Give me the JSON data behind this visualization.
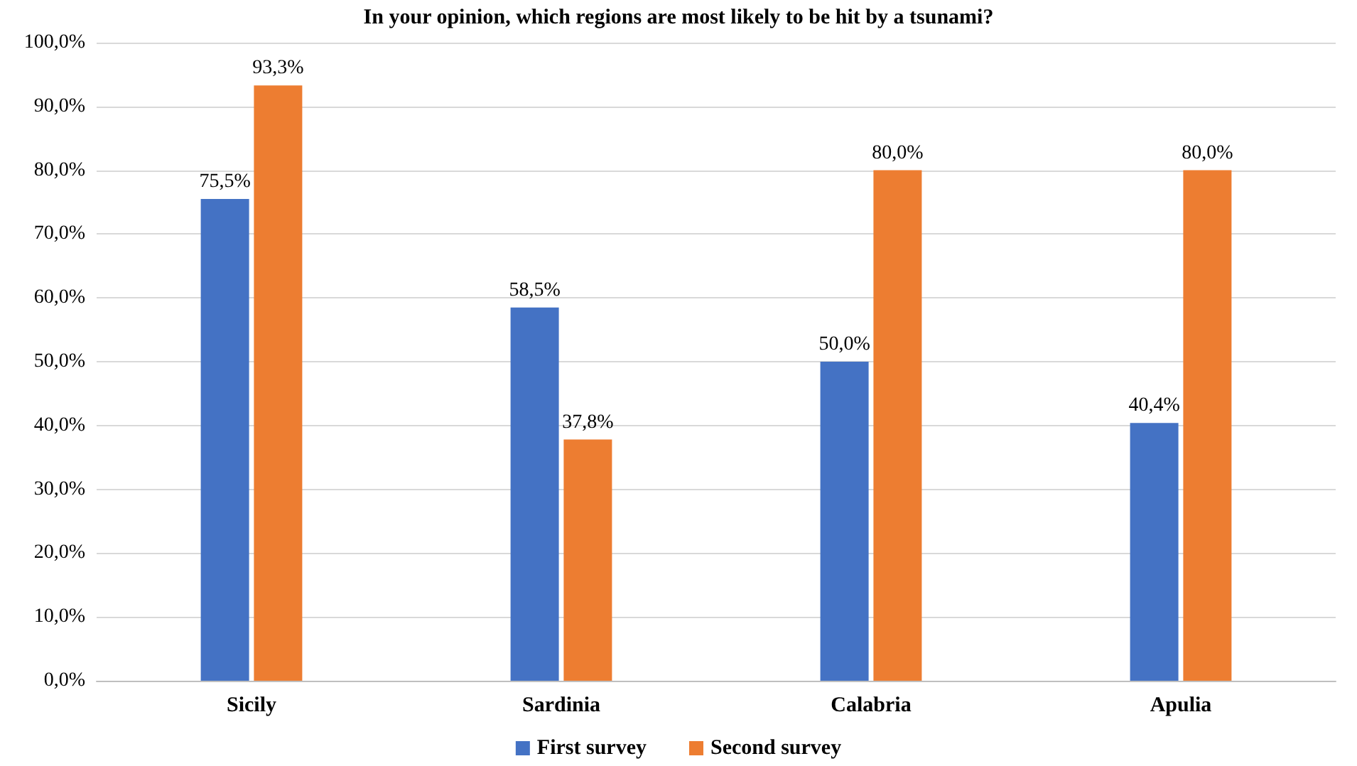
{
  "chart_data": {
    "type": "bar",
    "title": "In your opinion, which regions are most likely to be hit by a tsunami?",
    "categories": [
      "Sicily",
      "Sardinia",
      "Calabria",
      "Apulia"
    ],
    "series": [
      {
        "name": "First survey",
        "color": "#4472c4",
        "values": [
          75.5,
          58.5,
          50.0,
          40.4
        ],
        "value_labels": [
          "75,5%",
          "58,5%",
          "50,0%",
          "40,4%"
        ]
      },
      {
        "name": "Second survey",
        "color": "#ed7d31",
        "values": [
          93.3,
          37.8,
          80.0,
          80.0
        ],
        "value_labels": [
          "93,3%",
          "37,8%",
          "80,0%",
          "80,0%"
        ]
      }
    ],
    "ylim": [
      0,
      100
    ],
    "yticks": [
      {
        "value": 0,
        "label": "0,0%"
      },
      {
        "value": 10,
        "label": "10,0%"
      },
      {
        "value": 20,
        "label": "20,0%"
      },
      {
        "value": 30,
        "label": "30,0%"
      },
      {
        "value": 40,
        "label": "40,0%"
      },
      {
        "value": 50,
        "label": "50,0%"
      },
      {
        "value": 60,
        "label": "60,0%"
      },
      {
        "value": 70,
        "label": "70,0%"
      },
      {
        "value": 80,
        "label": "80,0%"
      },
      {
        "value": 90,
        "label": "90,0%"
      },
      {
        "value": 100,
        "label": "100,0%"
      }
    ],
    "grid": "y",
    "legend": "bottom"
  }
}
